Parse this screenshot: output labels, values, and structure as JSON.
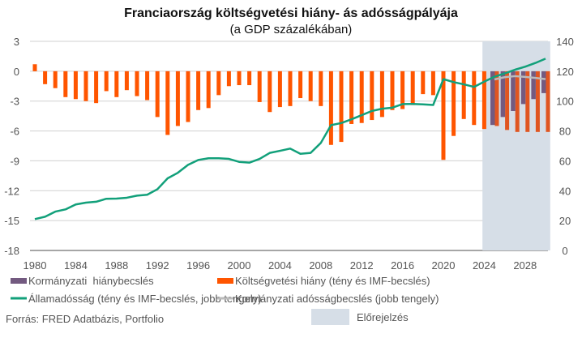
{
  "chart_data": {
    "type": "bar+line",
    "title": "Franciaország költségvetési hiány- ás adósságpályája",
    "subtitle": "(a GDP százalékában)",
    "source": "Forrás: FRED Adatbázis, Portfolio",
    "forecast_label": "Előrejelzés",
    "forecast_range": [
      2024.5,
      2030.5
    ],
    "x_ticks": [
      1980,
      1984,
      1988,
      1992,
      1996,
      2000,
      2004,
      2008,
      2012,
      2016,
      2020,
      2024,
      2028
    ],
    "left_axis": {
      "ylim": [
        -18,
        3
      ],
      "ticks": [
        3,
        0,
        -3,
        -6,
        -9,
        -12,
        -15,
        -18
      ]
    },
    "right_axis": {
      "ylim": [
        0,
        140
      ],
      "ticks": [
        140,
        120,
        100,
        80,
        60,
        40,
        20,
        0
      ]
    },
    "grid": true,
    "legend_placement": "bottom",
    "colors": {
      "deficit": "#FF5500",
      "deficit_forecast": "#E05520",
      "gov_deficit": "#735A80",
      "debt": "#12A07A",
      "gov_debt": "#BBBBBB",
      "forecast_shade": "#D6DEE7"
    },
    "series": [
      {
        "name": "Költségvetési hiány (tény és IMF-becslés)",
        "kind": "bar",
        "axis": "left",
        "x": [
          1980,
          1981,
          1982,
          1983,
          1984,
          1985,
          1986,
          1987,
          1988,
          1989,
          1990,
          1991,
          1992,
          1993,
          1994,
          1995,
          1996,
          1997,
          1998,
          1999,
          2000,
          2001,
          2002,
          2003,
          2004,
          2005,
          2006,
          2007,
          2008,
          2009,
          2010,
          2011,
          2012,
          2013,
          2014,
          2015,
          2016,
          2017,
          2018,
          2019,
          2020,
          2021,
          2022,
          2023,
          2024,
          2025,
          2026,
          2027,
          2028,
          2029,
          2030
        ],
        "values": [
          0.7,
          -1.3,
          -1.7,
          -2.6,
          -2.8,
          -3.0,
          -3.2,
          -2.0,
          -2.6,
          -1.9,
          -2.5,
          -2.9,
          -4.6,
          -6.4,
          -5.5,
          -5.1,
          -3.9,
          -3.7,
          -2.4,
          -1.5,
          -1.4,
          -1.4,
          -3.1,
          -4.1,
          -3.6,
          -3.5,
          -2.7,
          -3.0,
          -3.5,
          -7.4,
          -7.1,
          -5.3,
          -5.2,
          -4.9,
          -4.6,
          -3.9,
          -3.8,
          -3.4,
          -2.3,
          -2.4,
          -8.9,
          -6.5,
          -4.8,
          -5.4,
          -5.8,
          -5.5,
          -5.9,
          -6.1,
          -6.1,
          -6.1,
          -6.1
        ]
      },
      {
        "name": "Kormányzati  hiánybecslés",
        "kind": "bar",
        "axis": "left",
        "x": [
          2025,
          2026,
          2027,
          2028,
          2029,
          2030
        ],
        "values": [
          -5.4,
          -4.6,
          -4.0,
          -3.3,
          -2.8,
          -2.2
        ]
      },
      {
        "name": "Államadósság (tény és IMF-becslés, jobb tengely)",
        "kind": "line",
        "axis": "right",
        "x": [
          1980,
          1981,
          1982,
          1983,
          1984,
          1985,
          1986,
          1987,
          1988,
          1989,
          1990,
          1991,
          1992,
          1993,
          1994,
          1995,
          1996,
          1997,
          1998,
          1999,
          2000,
          2001,
          2002,
          2003,
          2004,
          2005,
          2006,
          2007,
          2008,
          2009,
          2010,
          2011,
          2012,
          2013,
          2014,
          2015,
          2016,
          2017,
          2018,
          2019,
          2020,
          2021,
          2022,
          2023,
          2024,
          2025,
          2026,
          2027,
          2028,
          2029,
          2030
        ],
        "values": [
          21,
          22.6,
          26,
          27.5,
          30.8,
          32,
          32.6,
          34.6,
          34.7,
          35.3,
          36.7,
          37.3,
          41,
          48.3,
          52,
          57.3,
          60.6,
          61.7,
          61.7,
          61.3,
          59.3,
          58.8,
          61.3,
          65.3,
          66.7,
          68.2,
          64.7,
          65.3,
          72,
          83.9,
          85.3,
          87.8,
          90.6,
          93.4,
          94.9,
          95.6,
          98,
          98.1,
          97.8,
          97.4,
          114.7,
          112.7,
          111.2,
          109.5,
          113,
          116.3,
          118.5,
          121,
          123,
          125.5,
          128.4
        ]
      },
      {
        "name": "Kormányzati adósságbecslés (jobb tengely)",
        "kind": "line",
        "axis": "right",
        "x": [
          2025,
          2026,
          2027,
          2028,
          2029,
          2030
        ],
        "values": [
          114.5,
          116,
          116.7,
          116.2,
          115.5,
          114.7
        ]
      }
    ]
  }
}
